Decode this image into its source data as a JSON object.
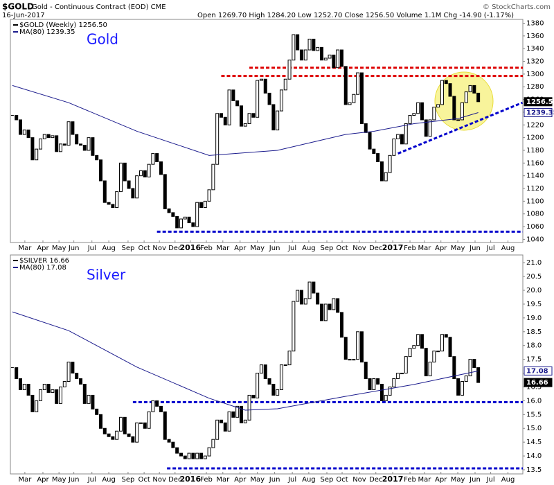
{
  "header": {
    "symbol": "$GOLD",
    "description": "Gold - Continuous Contract (EOD) CME",
    "date": "16-Jun-2017",
    "quote": "Open 1269.70  High 1284.20  Low 1252.70  Close 1256.50  Volume 1.1M  Chg -14.90 (-1.17%)",
    "credit": "© StockCharts.com"
  },
  "chart_data": [
    {
      "type": "candlestick",
      "title": "Gold",
      "name": "$GOLD (Weekly) 1256.50",
      "color": "#000000",
      "values": [
        1235,
        1228,
        1205,
        1212,
        1200,
        1165,
        1182,
        1198,
        1205,
        1200,
        1203,
        1178,
        1190,
        1188,
        1225,
        1205,
        1190,
        1188,
        1180,
        1200,
        1172,
        1165,
        1132,
        1098,
        1095,
        1090,
        1115,
        1160,
        1132,
        1120,
        1105,
        1140,
        1148,
        1138,
        1158,
        1175,
        1162,
        1142,
        1088,
        1082,
        1076,
        1058,
        1072,
        1075,
        1066,
        1060,
        1098,
        1090,
        1100,
        1118,
        1158,
        1238,
        1232,
        1220,
        1275,
        1258,
        1250,
        1218,
        1222,
        1238,
        1232,
        1290,
        1292,
        1270,
        1252,
        1212,
        1242,
        1275,
        1292,
        1322,
        1362,
        1338,
        1322,
        1338,
        1355,
        1337,
        1342,
        1322,
        1325,
        1330,
        1310,
        1338,
        1312,
        1252,
        1255,
        1268,
        1302,
        1222,
        1208,
        1182,
        1175,
        1162,
        1132,
        1145,
        1172,
        1198,
        1205,
        1190,
        1222,
        1235,
        1238,
        1255,
        1228,
        1202,
        1228,
        1248,
        1252,
        1290,
        1285,
        1265,
        1228,
        1228,
        1255,
        1272,
        1282,
        1270,
        1256.5
      ],
      "ma": {
        "name": "MA(80) 1239.35",
        "color": "#1a1a8c",
        "x": [
          0,
          14,
          31,
          49,
          66,
          83,
          90,
          100,
          111,
          116
        ],
        "values": [
          1282,
          1255,
          1210,
          1172,
          1180,
          1205,
          1210,
          1222,
          1230,
          1239.35
        ]
      },
      "reference_lines": [
        {
          "value": 1310,
          "from": 59,
          "color": "#dd0000"
        },
        {
          "value": 1297,
          "from": 52,
          "color": "#dd0000"
        },
        {
          "value": 1052,
          "from": 36,
          "color": "#0000cc"
        }
      ],
      "trend_lines": [
        {
          "x": [
            96,
            127
          ],
          "values": [
            1175,
            1255
          ],
          "color": "#0000cc"
        }
      ],
      "price_tags": [
        {
          "value": 1256.5,
          "label": "1256.50",
          "color": "#000000"
        },
        {
          "value": 1239.35,
          "label": "1239.35",
          "color": "#1a1a8c"
        }
      ],
      "xlim": [
        -0.5,
        127.1
      ],
      "ylim": [
        1035,
        1386
      ],
      "yticks": [
        1040,
        1060,
        1080,
        1100,
        1120,
        1140,
        1160,
        1180,
        1200,
        1220,
        1240,
        1260,
        1280,
        1300,
        1320,
        1340,
        1360,
        1380
      ],
      "xticks": [
        {
          "value": 3.1,
          "label": "Mar"
        },
        {
          "value": 7.6,
          "label": "Apr"
        },
        {
          "value": 11.6,
          "label": "May"
        },
        {
          "value": 15.3,
          "label": "Jun"
        },
        {
          "value": 19.8,
          "label": "Jul"
        },
        {
          "value": 24,
          "label": "Aug"
        },
        {
          "value": 28.8,
          "label": "Sep"
        },
        {
          "value": 32.8,
          "label": "Oct"
        },
        {
          "value": 36.6,
          "label": "Nov"
        },
        {
          "value": 40.5,
          "label": "Dec"
        },
        {
          "value": 44.3,
          "label": "2016"
        },
        {
          "value": 48.3,
          "label": "Feb"
        },
        {
          "value": 52.4,
          "label": "Mar"
        },
        {
          "value": 56.7,
          "label": "Apr"
        },
        {
          "value": 61,
          "label": "May"
        },
        {
          "value": 65.3,
          "label": "Jun"
        },
        {
          "value": 69.7,
          "label": "Jul"
        },
        {
          "value": 73.8,
          "label": "Aug"
        },
        {
          "value": 78.3,
          "label": "Sep"
        },
        {
          "value": 82.1,
          "label": "Oct"
        },
        {
          "value": 86.4,
          "label": "Nov"
        },
        {
          "value": 90.5,
          "label": "Dec"
        },
        {
          "value": 94.7,
          "label": "2017"
        },
        {
          "value": 99,
          "label": "Feb"
        },
        {
          "value": 102.6,
          "label": "Mar"
        },
        {
          "value": 106.7,
          "label": "Apr"
        },
        {
          "value": 110.9,
          "label": "May"
        },
        {
          "value": 115.2,
          "label": "Jun"
        },
        {
          "value": 119.1,
          "label": "Jul"
        },
        {
          "value": 123.4,
          "label": "Aug"
        }
      ]
    },
    {
      "type": "candlestick",
      "title": "Silver",
      "name": "$SILVER 16.66",
      "color": "#000000",
      "values": [
        17.2,
        16.8,
        16.4,
        16.6,
        16.2,
        15.6,
        16.0,
        16.4,
        16.6,
        16.3,
        16.4,
        15.9,
        16.5,
        16.7,
        17.4,
        17.0,
        16.8,
        16.6,
        15.9,
        16.2,
        15.7,
        15.5,
        15.0,
        14.8,
        14.7,
        14.6,
        14.9,
        15.4,
        14.8,
        14.7,
        14.5,
        15.2,
        15.2,
        15.0,
        15.6,
        16.0,
        15.8,
        15.6,
        14.6,
        14.5,
        14.3,
        14.1,
        14.0,
        13.9,
        14.1,
        13.9,
        14.1,
        13.9,
        14.0,
        14.3,
        14.6,
        15.3,
        15.2,
        14.9,
        15.6,
        15.4,
        15.8,
        15.2,
        15.3,
        16.2,
        16.1,
        17.0,
        17.3,
        16.8,
        16.6,
        16.2,
        16.4,
        17.3,
        17.3,
        17.8,
        19.6,
        20.0,
        19.5,
        19.7,
        20.3,
        19.9,
        19.5,
        18.9,
        19.5,
        19.3,
        19.7,
        19.2,
        18.3,
        17.5,
        17.5,
        17.5,
        18.5,
        17.4,
        16.8,
        16.4,
        16.8,
        16.6,
        16.0,
        16.2,
        16.5,
        16.8,
        17.0,
        17.0,
        17.6,
        17.9,
        18.0,
        18.4,
        17.9,
        16.9,
        17.4,
        17.8,
        17.8,
        18.4,
        18.3,
        17.6,
        16.8,
        16.2,
        16.7,
        16.9,
        17.5,
        17.2,
        16.66
      ],
      "ma": {
        "name": "MA(80) 17.08",
        "color": "#1a1a8c",
        "x": [
          0,
          14,
          31,
          49,
          58,
          66,
          83,
          100,
          116
        ],
        "values": [
          19.22,
          18.54,
          17.22,
          16.09,
          15.66,
          15.71,
          16.16,
          16.59,
          17.08
        ]
      },
      "reference_lines": [
        {
          "value": 15.95,
          "from": 30,
          "color": "#0000cc"
        },
        {
          "value": 13.55,
          "from": 38.5,
          "color": "#0000cc"
        }
      ],
      "trend_lines": [],
      "price_tags": [
        {
          "value": 17.08,
          "label": "17.08",
          "color": "#1a1a8c"
        },
        {
          "value": 16.66,
          "label": "16.66",
          "color": "#000000"
        }
      ],
      "xlim": [
        -0.5,
        127.1
      ],
      "ylim": [
        13.35,
        21.28
      ],
      "yticks": [
        13.5,
        {
          "value": 14,
          "label": "14.0"
        },
        14.5,
        {
          "value": 15,
          "label": "15.0"
        },
        15.5,
        {
          "value": 16,
          "label": "16.0"
        },
        16.5,
        {
          "value": 17,
          "label": "17.0"
        },
        17.5,
        {
          "value": 18,
          "label": "18.0"
        },
        18.5,
        {
          "value": 19,
          "label": "19.0"
        },
        19.5,
        {
          "value": 20,
          "label": "20.0"
        },
        20.5,
        {
          "value": 21,
          "label": "21.0"
        }
      ],
      "xticks": [
        {
          "value": 3.1,
          "label": "Mar"
        },
        {
          "value": 7.6,
          "label": "Apr"
        },
        {
          "value": 11.6,
          "label": "May"
        },
        {
          "value": 15.3,
          "label": "Jun"
        },
        {
          "value": 19.8,
          "label": "Jul"
        },
        {
          "value": 24,
          "label": "Aug"
        },
        {
          "value": 28.8,
          "label": "Sep"
        },
        {
          "value": 32.8,
          "label": "Oct"
        },
        {
          "value": 36.6,
          "label": "Nov"
        },
        {
          "value": 40.5,
          "label": "Dec"
        },
        {
          "value": 44.3,
          "label": "2016"
        },
        {
          "value": 48.3,
          "label": "Feb"
        },
        {
          "value": 52.4,
          "label": "Mar"
        },
        {
          "value": 56.7,
          "label": "Apr"
        },
        {
          "value": 61,
          "label": "May"
        },
        {
          "value": 65.3,
          "label": "Jun"
        },
        {
          "value": 69.7,
          "label": "Jul"
        },
        {
          "value": 73.8,
          "label": "Aug"
        },
        {
          "value": 78.3,
          "label": "Sep"
        },
        {
          "value": 82.1,
          "label": "Oct"
        },
        {
          "value": 86.4,
          "label": "Nov"
        },
        {
          "value": 90.5,
          "label": "Dec"
        },
        {
          "value": 94.7,
          "label": "2017"
        },
        {
          "value": 99,
          "label": "Feb"
        },
        {
          "value": 102.6,
          "label": "Mar"
        },
        {
          "value": 106.7,
          "label": "Apr"
        },
        {
          "value": 110.9,
          "label": "May"
        },
        {
          "value": 115.2,
          "label": "Jun"
        },
        {
          "value": 119.1,
          "label": "Jul"
        },
        {
          "value": 123.4,
          "label": "Aug"
        }
      ]
    }
  ]
}
